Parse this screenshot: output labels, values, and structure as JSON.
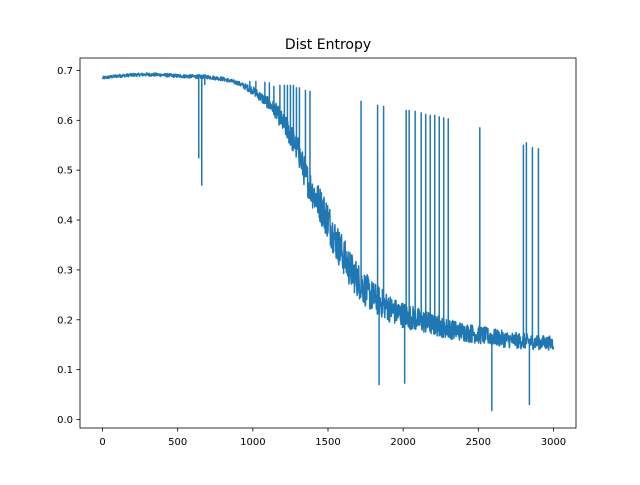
{
  "chart_data": {
    "type": "line",
    "title": "Dist Entropy",
    "xlabel": "",
    "ylabel": "",
    "xlim": [
      -150,
      3150
    ],
    "ylim": [
      -0.017,
      0.725
    ],
    "x_ticks": [
      0,
      500,
      1000,
      1500,
      2000,
      2500,
      3000
    ],
    "y_ticks": [
      0.0,
      0.1,
      0.2,
      0.3,
      0.4,
      0.5,
      0.6,
      0.7
    ],
    "x_tick_labels": [
      "0",
      "500",
      "1000",
      "1500",
      "2000",
      "2500",
      "3000"
    ],
    "y_tick_labels": [
      "0.0",
      "0.1",
      "0.2",
      "0.3",
      "0.4",
      "0.5",
      "0.6",
      "0.7"
    ],
    "grid": false,
    "legend": false,
    "series": [
      {
        "color": "#1f77b4",
        "trend": {
          "x": [
            0,
            100,
            200,
            300,
            400,
            500,
            600,
            700,
            800,
            900,
            1000,
            1100,
            1150,
            1200,
            1250,
            1300,
            1350,
            1400,
            1450,
            1500,
            1550,
            1600,
            1650,
            1700,
            1750,
            1800,
            1850,
            1900,
            1950,
            2000,
            2050,
            2100,
            2200,
            2300,
            2400,
            2500,
            2600,
            2700,
            2800,
            2900,
            3000
          ],
          "y": [
            0.685,
            0.689,
            0.691,
            0.692,
            0.691,
            0.689,
            0.688,
            0.687,
            0.683,
            0.675,
            0.66,
            0.635,
            0.62,
            0.595,
            0.57,
            0.54,
            0.49,
            0.455,
            0.43,
            0.4,
            0.36,
            0.33,
            0.3,
            0.28,
            0.26,
            0.245,
            0.235,
            0.225,
            0.215,
            0.21,
            0.205,
            0.2,
            0.19,
            0.182,
            0.176,
            0.17,
            0.165,
            0.16,
            0.157,
            0.155,
            0.153
          ]
        },
        "noise_amplitude": {
          "x": [
            0,
            900,
            1100,
            1300,
            1500,
            1700,
            1900,
            2300,
            3000
          ],
          "y": [
            0.003,
            0.004,
            0.012,
            0.028,
            0.04,
            0.036,
            0.028,
            0.02,
            0.014
          ]
        },
        "spikes": [
          {
            "x": 640,
            "y": 0.525
          },
          {
            "x": 660,
            "y": 0.47
          },
          {
            "x": 680,
            "y": 0.672
          },
          {
            "x": 980,
            "y": 0.678
          },
          {
            "x": 1020,
            "y": 0.678
          },
          {
            "x": 1080,
            "y": 0.676
          },
          {
            "x": 1110,
            "y": 0.675
          },
          {
            "x": 1140,
            "y": 0.668
          },
          {
            "x": 1180,
            "y": 0.67
          },
          {
            "x": 1210,
            "y": 0.67
          },
          {
            "x": 1230,
            "y": 0.67
          },
          {
            "x": 1250,
            "y": 0.67
          },
          {
            "x": 1270,
            "y": 0.67
          },
          {
            "x": 1290,
            "y": 0.665
          },
          {
            "x": 1310,
            "y": 0.665
          },
          {
            "x": 1350,
            "y": 0.66
          },
          {
            "x": 1380,
            "y": 0.658
          },
          {
            "x": 1720,
            "y": 0.638
          },
          {
            "x": 1830,
            "y": 0.63
          },
          {
            "x": 1840,
            "y": 0.07
          },
          {
            "x": 1870,
            "y": 0.628
          },
          {
            "x": 2010,
            "y": 0.073
          },
          {
            "x": 2020,
            "y": 0.62
          },
          {
            "x": 2040,
            "y": 0.62
          },
          {
            "x": 2080,
            "y": 0.618
          },
          {
            "x": 2120,
            "y": 0.615
          },
          {
            "x": 2150,
            "y": 0.612
          },
          {
            "x": 2180,
            "y": 0.61
          },
          {
            "x": 2210,
            "y": 0.61
          },
          {
            "x": 2240,
            "y": 0.607
          },
          {
            "x": 2270,
            "y": 0.605
          },
          {
            "x": 2300,
            "y": 0.603
          },
          {
            "x": 2510,
            "y": 0.585
          },
          {
            "x": 2590,
            "y": 0.018
          },
          {
            "x": 2800,
            "y": 0.55
          },
          {
            "x": 2820,
            "y": 0.555
          },
          {
            "x": 2840,
            "y": 0.03
          },
          {
            "x": 2860,
            "y": 0.545
          },
          {
            "x": 2900,
            "y": 0.543
          }
        ]
      }
    ]
  }
}
